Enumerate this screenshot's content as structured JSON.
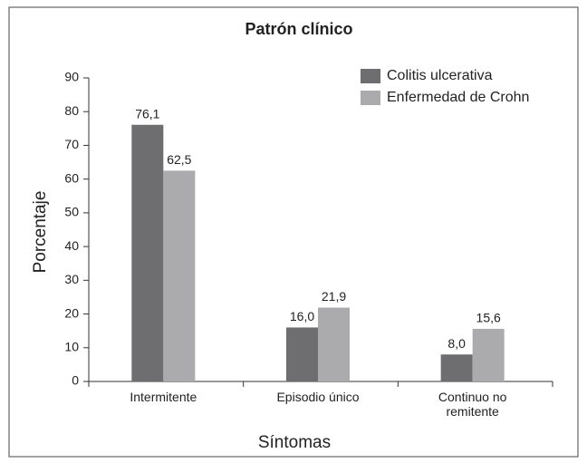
{
  "chart_data": {
    "type": "bar",
    "title": "Patrón clínico",
    "x_label": "Síntomas",
    "y_label": "Porcentaje",
    "categories": [
      "Intermitente",
      "Episodio único",
      "Continuo no remitente"
    ],
    "series": [
      {
        "name": "Colitis ulcerativa",
        "color": "#6e6e70",
        "values": [
          76.1,
          16.0,
          8.0
        ],
        "value_labels": [
          "76,1",
          "16,0",
          "8,0"
        ]
      },
      {
        "name": "Enfermedad de Crohn",
        "color": "#ababad",
        "values": [
          62.5,
          21.9,
          15.6
        ],
        "value_labels": [
          "62,5",
          "21,9",
          "15,6"
        ]
      }
    ],
    "ylim": [
      0,
      90
    ],
    "yticks": [
      0,
      10,
      20,
      30,
      40,
      50,
      60,
      70,
      80,
      90
    ],
    "legend": "upper right"
  }
}
